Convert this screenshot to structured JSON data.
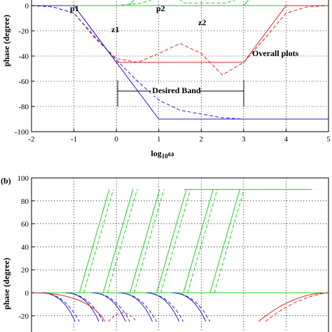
{
  "chart_data": [
    {
      "type": "line",
      "panel_label": "",
      "xlabel": "log10ω",
      "xlabel_base": "log",
      "xlabel_sub": "10",
      "xlabel_tail": "ω",
      "ylabel": "phase (degree)",
      "xlim": [
        -2,
        5
      ],
      "ylim": [
        -100,
        10
      ],
      "xticks": [
        "-2",
        "-1",
        "0",
        "1",
        "2",
        "3",
        "4",
        "5"
      ],
      "yticks": [
        "0",
        "-20",
        "-40",
        "-60",
        "-80",
        "-100"
      ],
      "grid": true,
      "series": [
        {
          "color": "#22cc22",
          "style": "solid",
          "x": [
            -2,
            -1,
            1,
            2,
            3,
            5
          ],
          "y": [
            0,
            0,
            0,
            0,
            0,
            0
          ]
        },
        {
          "color": "#22cc22",
          "style": "solid",
          "x": [
            0.3,
            1.3
          ],
          "y": [
            0,
            40
          ]
        },
        {
          "color": "#22cc22",
          "style": "solid",
          "x": [
            3,
            4
          ],
          "y": [
            0,
            40
          ]
        },
        {
          "color": "#22cc22",
          "style": "dash",
          "x": [
            -2,
            0,
            0.6,
            1.3,
            1.6,
            2.6,
            3.2,
            4.2
          ],
          "y": [
            0,
            0,
            2,
            10,
            2,
            2,
            10,
            20
          ]
        },
        {
          "color": "#dd2222",
          "style": "solid",
          "x": [
            -2,
            -1,
            0,
            3,
            4,
            5
          ],
          "y": [
            0,
            0,
            -45,
            -45,
            0,
            0
          ]
        },
        {
          "color": "#dd2222",
          "style": "dash",
          "x": [
            -2,
            -1.5,
            -1,
            -0.5,
            0,
            0.5,
            1,
            1.5,
            2,
            2.5,
            3,
            3.5,
            4,
            4.5,
            5
          ],
          "y": [
            0,
            -1,
            -6,
            -26,
            -42,
            -45,
            -38,
            -30,
            -38,
            -55,
            -45,
            -26,
            -6,
            -1,
            0
          ]
        },
        {
          "color": "#2222cc",
          "style": "solid",
          "x": [
            -2,
            -1,
            1,
            3,
            5
          ],
          "y": [
            0,
            0,
            -90,
            -90,
            -90
          ]
        },
        {
          "color": "#2222cc",
          "style": "dash",
          "x": [
            -2,
            -1.5,
            -1,
            -0.5,
            0,
            0.5,
            1,
            1.5,
            2,
            2.5,
            3,
            3.5,
            5
          ],
          "y": [
            0,
            -1,
            -6,
            -25,
            -43,
            -60,
            -75,
            -83,
            -86,
            -89,
            -90,
            -90,
            -90
          ]
        }
      ],
      "annotations": [
        "p1",
        "p2",
        "z1",
        "z2",
        "Overall plots",
        "Desired Band"
      ]
    },
    {
      "type": "line",
      "panel_label": "(b)",
      "xlabel": "",
      "ylabel": "phase (degree)",
      "ylim": [
        -20,
        100
      ],
      "yticks": [
        "100",
        "80",
        "60",
        "40",
        "20",
        "0",
        "-20"
      ],
      "grid": true,
      "green_segments": [
        {
          "x0": 0.9,
          "x1": 3.6
        },
        {
          "x0": 1.7,
          "x1": 4.4
        },
        {
          "x0": 2.6,
          "x1": 5.3
        },
        {
          "x0": 3.5,
          "x1": 6.2
        },
        {
          "x0": 4.4,
          "x1": 7.1
        },
        {
          "x0": 5.3,
          "x1": 8.0
        }
      ],
      "top_level": 90,
      "series_colors": {
        "green": "#22cc22",
        "red": "#dd2222",
        "blue": "#2222cc"
      }
    }
  ]
}
